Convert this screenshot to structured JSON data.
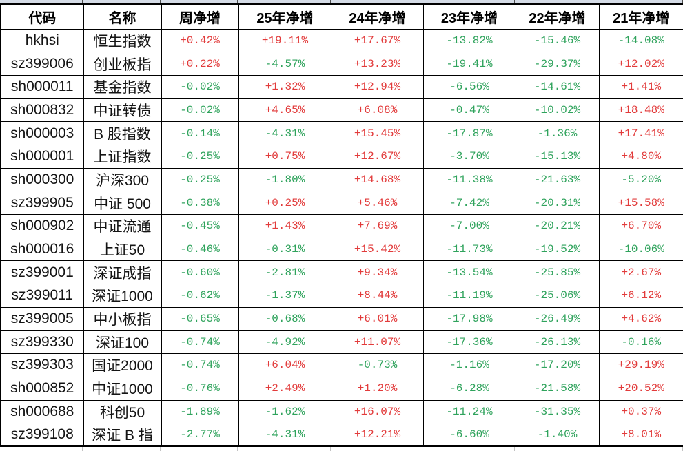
{
  "colors": {
    "positive": "#e23b3b",
    "negative": "#2fa35c"
  },
  "chart_data": {
    "type": "table",
    "columns": [
      "代码",
      "名称",
      "周净增",
      "25年净增",
      "24年净增",
      "23年净增",
      "22年净增",
      "21年净增"
    ],
    "rows": [
      [
        "hkhsi",
        "恒生指数",
        "+0.42%",
        "+19.11%",
        "+17.67%",
        "-13.82%",
        "-15.46%",
        "-14.08%"
      ],
      [
        "sz399006",
        "创业板指",
        "+0.22%",
        "-4.57%",
        "+13.23%",
        "-19.41%",
        "-29.37%",
        "+12.02%"
      ],
      [
        "sh000011",
        "基金指数",
        "-0.02%",
        "+1.32%",
        "+12.94%",
        "-6.56%",
        "-14.61%",
        "+1.41%"
      ],
      [
        "sh000832",
        "中证转债",
        "-0.02%",
        "+4.65%",
        "+6.08%",
        "-0.47%",
        "-10.02%",
        "+18.48%"
      ],
      [
        "sh000003",
        "B 股指数",
        "-0.14%",
        "-4.31%",
        "+15.45%",
        "-17.87%",
        "-1.36%",
        "+17.41%"
      ],
      [
        "sh000001",
        "上证指数",
        "-0.25%",
        "+0.75%",
        "+12.67%",
        "-3.70%",
        "-15.13%",
        "+4.80%"
      ],
      [
        "sh000300",
        "沪深300",
        "-0.25%",
        "-1.80%",
        "+14.68%",
        "-11.38%",
        "-21.63%",
        "-5.20%"
      ],
      [
        "sz399905",
        "中证 500",
        "-0.38%",
        "+0.25%",
        "+5.46%",
        "-7.42%",
        "-20.31%",
        "+15.58%"
      ],
      [
        "sh000902",
        "中证流通",
        "-0.45%",
        "+1.43%",
        "+7.69%",
        "-7.00%",
        "-20.21%",
        "+6.70%"
      ],
      [
        "sh000016",
        "上证50",
        "-0.46%",
        "-0.31%",
        "+15.42%",
        "-11.73%",
        "-19.52%",
        "-10.06%"
      ],
      [
        "sz399001",
        "深证成指",
        "-0.60%",
        "-2.81%",
        "+9.34%",
        "-13.54%",
        "-25.85%",
        "+2.67%"
      ],
      [
        "sz399011",
        "深证1000",
        "-0.62%",
        "-1.37%",
        "+8.44%",
        "-11.19%",
        "-25.06%",
        "+6.12%"
      ],
      [
        "sz399005",
        "中小板指",
        "-0.65%",
        "-0.68%",
        "+6.01%",
        "-17.98%",
        "-26.49%",
        "+4.62%"
      ],
      [
        "sz399330",
        "深证100",
        "-0.74%",
        "-4.92%",
        "+11.07%",
        "-17.36%",
        "-26.13%",
        "-0.16%"
      ],
      [
        "sz399303",
        "国证2000",
        "-0.74%",
        "+6.04%",
        "-0.73%",
        "-1.16%",
        "-17.20%",
        "+29.19%"
      ],
      [
        "sh000852",
        "中证1000",
        "-0.76%",
        "+2.49%",
        "+1.20%",
        "-6.28%",
        "-21.58%",
        "+20.52%"
      ],
      [
        "sh000688",
        "科创50",
        "-1.89%",
        "-1.62%",
        "+16.07%",
        "-11.24%",
        "-31.35%",
        "+0.37%"
      ],
      [
        "sz399108",
        "深证 B 指",
        "-2.77%",
        "-4.31%",
        "+12.21%",
        "-6.60%",
        "-1.40%",
        "+8.01%"
      ]
    ]
  }
}
